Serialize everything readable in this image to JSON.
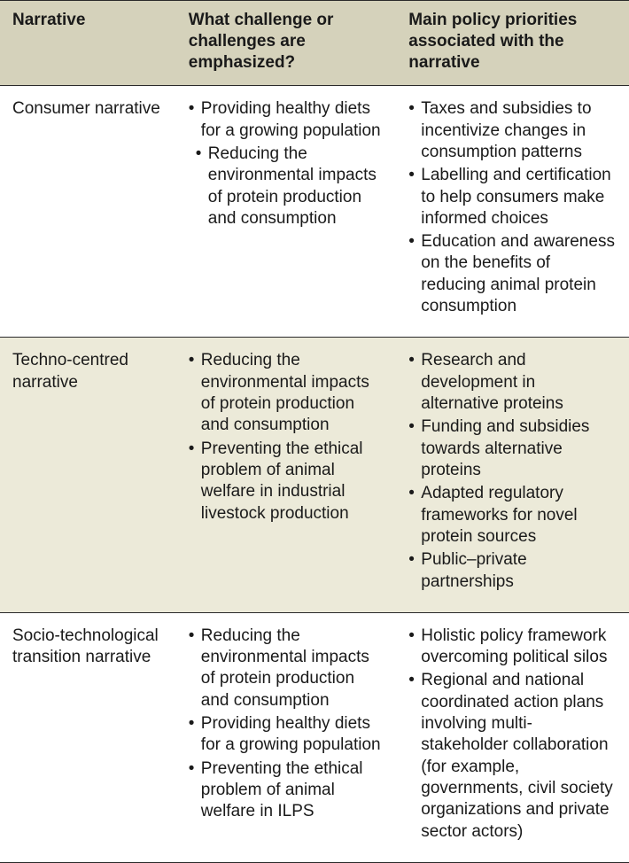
{
  "table": {
    "headers": [
      "Narrative",
      "What challenge or challenges are emphasized?",
      "Main policy priorities associated with the narrative"
    ],
    "rows": [
      {
        "narrative": "Consumer narrative",
        "challenges": [
          "Providing healthy diets for a growing population",
          "Reducing the environmental impacts of protein production and consumption"
        ],
        "policies": [
          "Taxes and subsidies to incentivize changes in consumption patterns",
          "Labelling and certification to help consumers make informed choices",
          "Education and awareness on the benefits of reducing animal protein consumption"
        ]
      },
      {
        "narrative": "Techno-centred narrative",
        "challenges": [
          "Reducing the environmental impacts of protein production and consumption",
          "Preventing the ethical problem of animal welfare in industrial livestock production"
        ],
        "policies": [
          "Research and development in alternative proteins",
          "Funding and subsidies towards alternative proteins",
          "Adapted regulatory frameworks for novel protein sources",
          "Public–private partnerships"
        ]
      },
      {
        "narrative": "Socio-technological transition narrative",
        "challenges": [
          "Reducing the environmental impacts of protein production and consumption",
          "Providing healthy diets for a growing population",
          "Preventing the ethical problem of animal welfare in ILPS"
        ],
        "policies": [
          "Holistic policy framework overcoming political silos",
          "Regional and national coordinated action plans involving multi-stakeholder collaboration (for example, governments, civil society organizations and private sector actors)"
        ]
      }
    ],
    "styling": {
      "header_bg": "#d5d2bb",
      "alt_row_bg": "#ecead9",
      "border_color": "#2a2a2a",
      "font_size_pt": 14,
      "font_family": "Arial",
      "column_widths_pct": [
        28,
        35,
        37
      ],
      "alt_row_index": 1
    }
  }
}
